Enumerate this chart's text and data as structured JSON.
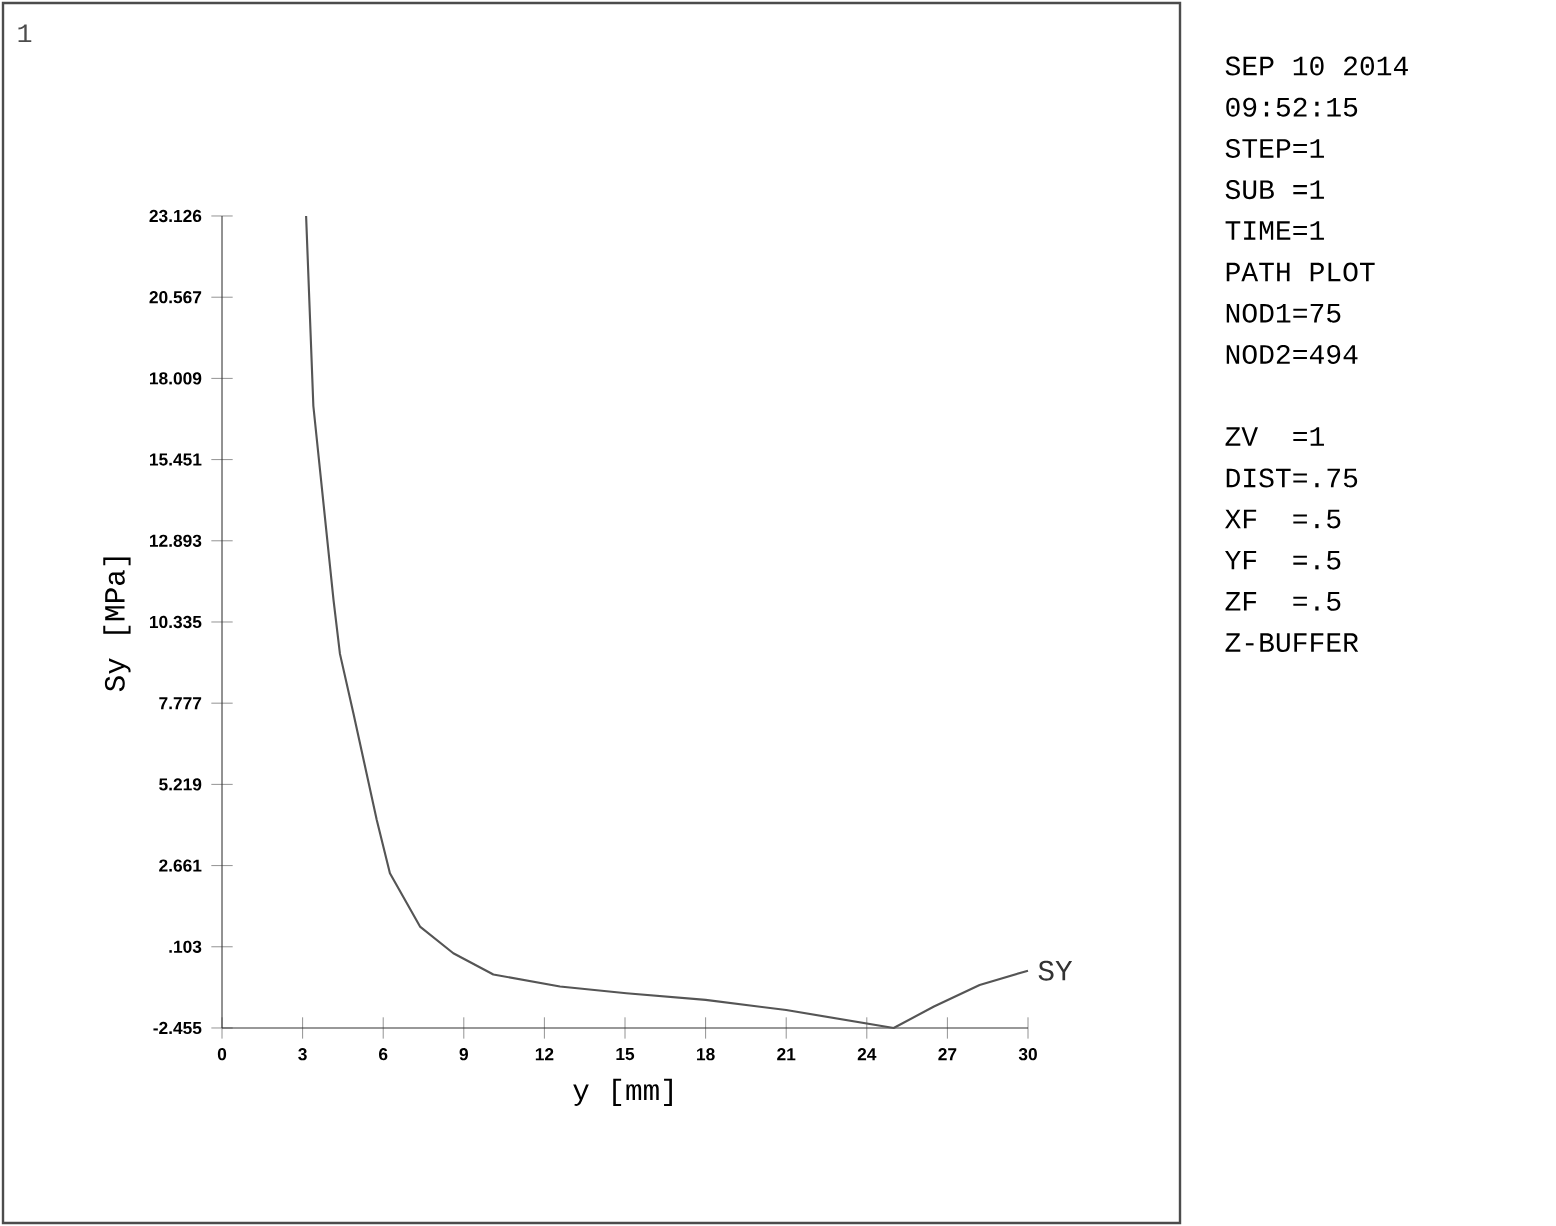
{
  "chart_data": {
    "type": "line",
    "xlabel": "y [mm]",
    "ylabel": "Sy [MPa]",
    "series": [
      {
        "name": "SY",
        "color": "#555555",
        "x": [
          3.13,
          3.4,
          4.15,
          4.39,
          4.89,
          5.76,
          6.25,
          7.37,
          8.61,
          10.1,
          12.58,
          15.05,
          18.0,
          21.0,
          25.0,
          26.5,
          28.2,
          30.0
        ],
        "values": [
          23.126,
          17.14,
          11.03,
          9.33,
          7.46,
          4.1,
          2.42,
          0.74,
          -0.1,
          -0.77,
          -1.15,
          -1.36,
          -1.57,
          -1.89,
          -2.455,
          -1.78,
          -1.1,
          -0.65
        ]
      }
    ],
    "xlim": [
      0,
      30
    ],
    "xticks": [
      0,
      3,
      6,
      9,
      12,
      15,
      18,
      21,
      24,
      27,
      30
    ],
    "ylim": [
      -2.455,
      23.126
    ],
    "yticks": [
      -2.455,
      {
        "value": 0.103,
        "label": ".103"
      },
      2.661,
      5.219,
      7.777,
      10.335,
      12.893,
      15.451,
      18.009,
      20.567,
      23.126
    ],
    "grid": false,
    "legend": false,
    "marker": "none",
    "line_style": "solid",
    "annotations": [
      "1",
      "SEP 10 2014",
      "09:52:15",
      "STEP=1",
      "SUB =1",
      "TIME=1",
      "PATH PLOT",
      "NOD1=75",
      "NOD2=494",
      "ZV  =1",
      "DIST=.75",
      "XF  =.5",
      "YF  =.5",
      "ZF  =.5",
      "Z-BUFFER"
    ]
  }
}
